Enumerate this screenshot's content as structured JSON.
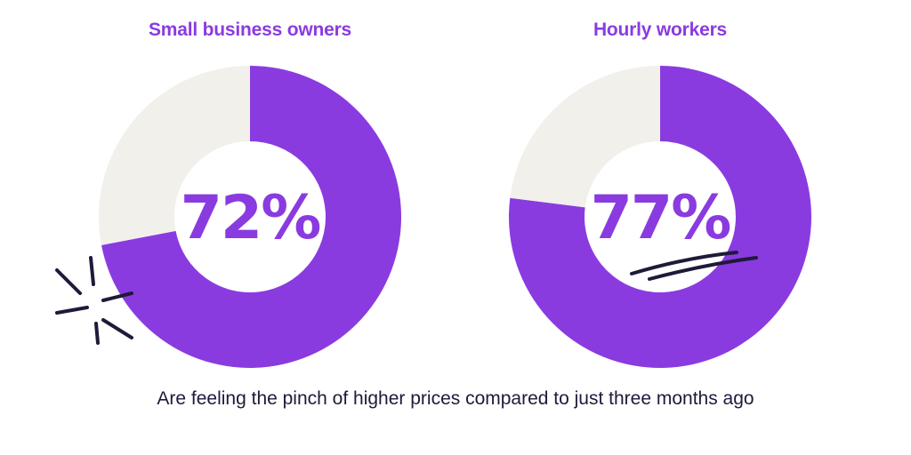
{
  "chart_data": [
    {
      "type": "pie",
      "title": "Small business owners",
      "center_label": "72%",
      "slices": [
        {
          "label": "",
          "value": 72,
          "color": "#8a3be0"
        },
        {
          "label": "",
          "value": 28,
          "color": "#f1f0eb"
        }
      ]
    },
    {
      "type": "pie",
      "title": "Hourly workers",
      "center_label": "77%",
      "slices": [
        {
          "label": "",
          "value": 77,
          "color": "#8a3be0"
        },
        {
          "label": "",
          "value": 23,
          "color": "#f1f0eb"
        }
      ]
    }
  ],
  "caption": "Are feeling the pinch of higher prices compared to just three months ago",
  "colors": {
    "accent": "#8a3be0",
    "track": "#f1f0eb",
    "ink": "#1e1a3a",
    "background": "#ffffff"
  }
}
